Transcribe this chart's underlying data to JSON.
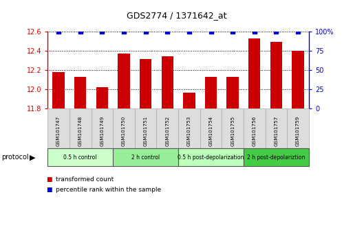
{
  "title": "GDS2774 / 1371642_at",
  "samples": [
    "GSM101747",
    "GSM101748",
    "GSM101749",
    "GSM101750",
    "GSM101751",
    "GSM101752",
    "GSM101753",
    "GSM101754",
    "GSM101755",
    "GSM101756",
    "GSM101757",
    "GSM101759"
  ],
  "bar_values": [
    12.18,
    12.13,
    12.02,
    12.37,
    12.31,
    12.34,
    11.96,
    12.13,
    12.13,
    12.53,
    12.49,
    12.4
  ],
  "percentile_values": [
    100,
    100,
    100,
    100,
    100,
    100,
    100,
    100,
    100,
    100,
    100,
    100
  ],
  "bar_color": "#cc0000",
  "percentile_color": "#0000cc",
  "ylim_left": [
    11.8,
    12.6
  ],
  "ylim_right": [
    0,
    100
  ],
  "yticks_left": [
    11.8,
    12.0,
    12.2,
    12.4,
    12.6
  ],
  "yticks_right": [
    0,
    25,
    50,
    75,
    100
  ],
  "ytick_labels_right": [
    "0",
    "25",
    "50",
    "75",
    "100%"
  ],
  "groups": [
    {
      "label": "0.5 h control",
      "start": 0,
      "end": 3,
      "color": "#ccffcc"
    },
    {
      "label": "2 h control",
      "start": 3,
      "end": 6,
      "color": "#99ee99"
    },
    {
      "label": "0.5 h post-depolarization",
      "start": 6,
      "end": 9,
      "color": "#bbffbb"
    },
    {
      "label": "2 h post-depolariztion",
      "start": 9,
      "end": 12,
      "color": "#44cc44"
    }
  ],
  "protocol_label": "protocol",
  "legend_items": [
    {
      "label": "transformed count",
      "color": "#cc0000"
    },
    {
      "label": "percentile rank within the sample",
      "color": "#0000cc"
    }
  ],
  "background_color": "#ffffff",
  "plot_bg_color": "#ffffff",
  "left_axis_color": "#cc0000",
  "right_axis_color": "#0000cc",
  "sample_box_color": "#dddddd",
  "sample_box_edge": "#aaaaaa",
  "group_box_edge": "#555555"
}
